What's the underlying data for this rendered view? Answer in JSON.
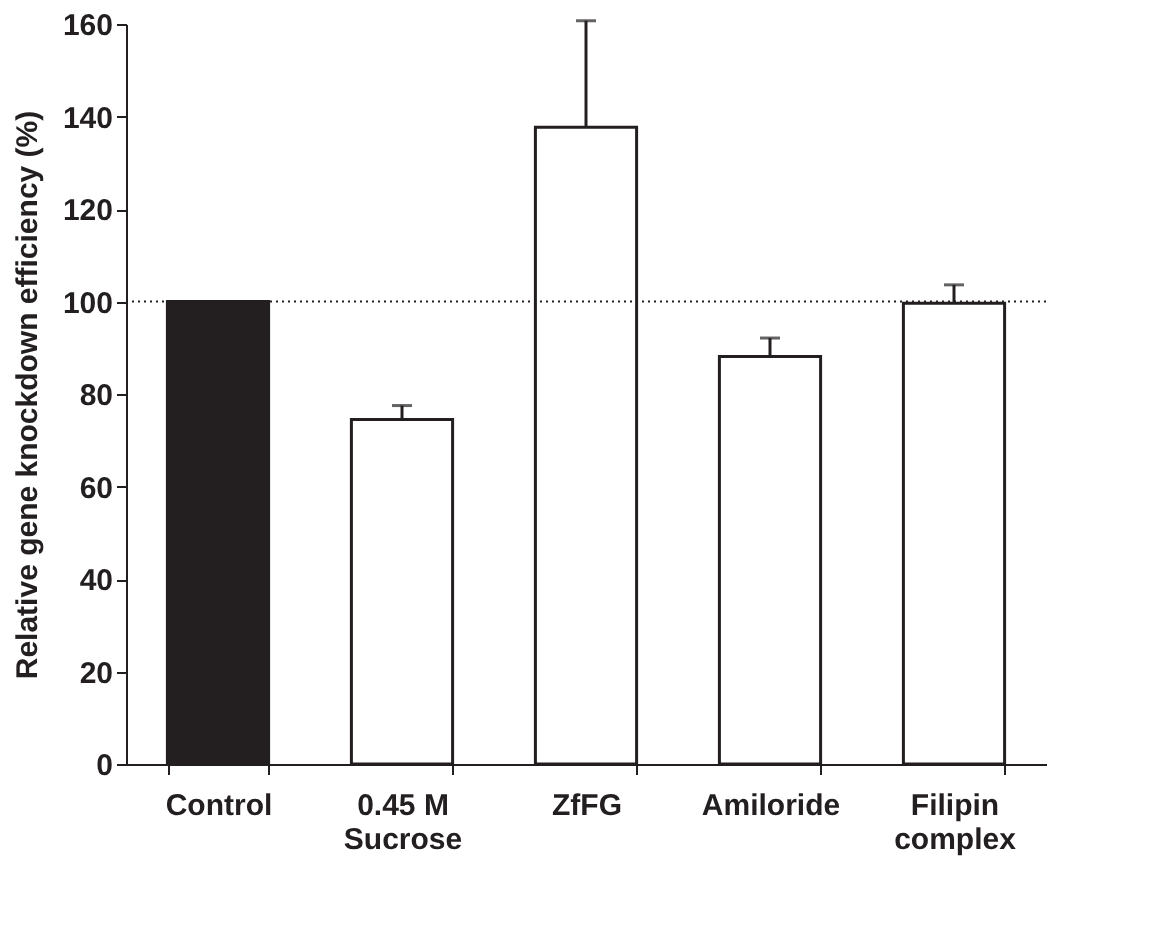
{
  "chart_data": {
    "type": "bar",
    "ylabel": "Relative gene knockdown efficiency (%)",
    "categories": [
      "Control",
      "0.45 M\nSucrose",
      "ZfFG",
      "Amiloride",
      "Filipin\ncomplex"
    ],
    "values": [
      100,
      74.5,
      137.7,
      88.1,
      99.6
    ],
    "colors": [
      "#231f20",
      "#ffffff",
      "#ffffff",
      "#ffffff",
      "#ffffff"
    ],
    "errors": [
      null,
      [
        74.5,
        77.5
      ],
      [
        137.7,
        160.7
      ],
      [
        88.1,
        92.1
      ],
      [
        99.6,
        103.6
      ]
    ],
    "ylim": [
      0,
      160
    ],
    "yticks": [
      0,
      20,
      40,
      60,
      80,
      100,
      120,
      140,
      160
    ],
    "ref_lines": [
      {
        "axis": "y",
        "value": 100,
        "label": null,
        "color": "#231f20",
        "line_style": "dotted"
      }
    ],
    "grid": false
  }
}
